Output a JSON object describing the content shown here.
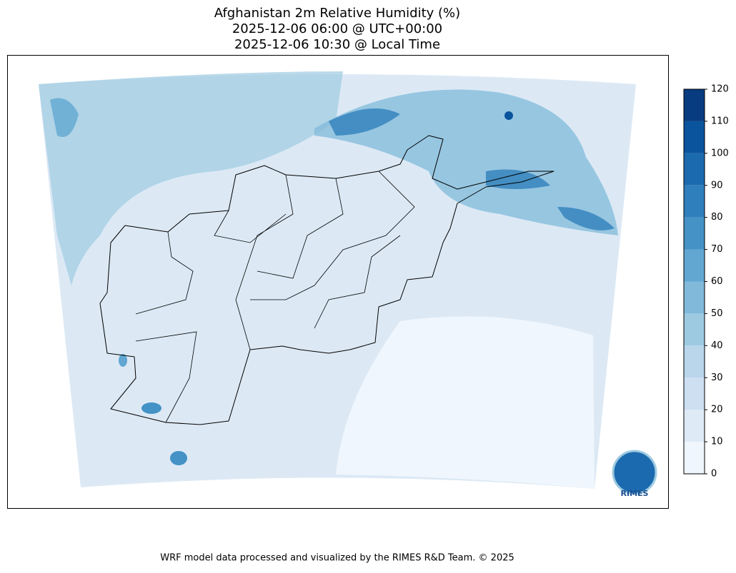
{
  "title": [
    "Afghanistan 2m Relative Humidity (%)",
    "2025-12-06 06:00 @ UTC+00:00",
    "2025-12-06 10:30 @ Local Time"
  ],
  "colorbar": {
    "lim": [
      0,
      120
    ],
    "ticks": [
      0,
      10,
      20,
      30,
      40,
      50,
      60,
      70,
      80,
      90,
      100,
      110,
      120
    ],
    "colors": [
      "#eff6fd",
      "#deebf7",
      "#cddff1",
      "#b9d6eb",
      "#9ecae1",
      "#80b9da",
      "#61a7d2",
      "#4492c6",
      "#2f7fbc",
      "#1b6aaf",
      "#0a549e",
      "#083c80"
    ]
  },
  "logo": {
    "text": "RIMES"
  },
  "footer": "WRF model data processed and visualized by the RIMES R&D Team. © 2025"
}
